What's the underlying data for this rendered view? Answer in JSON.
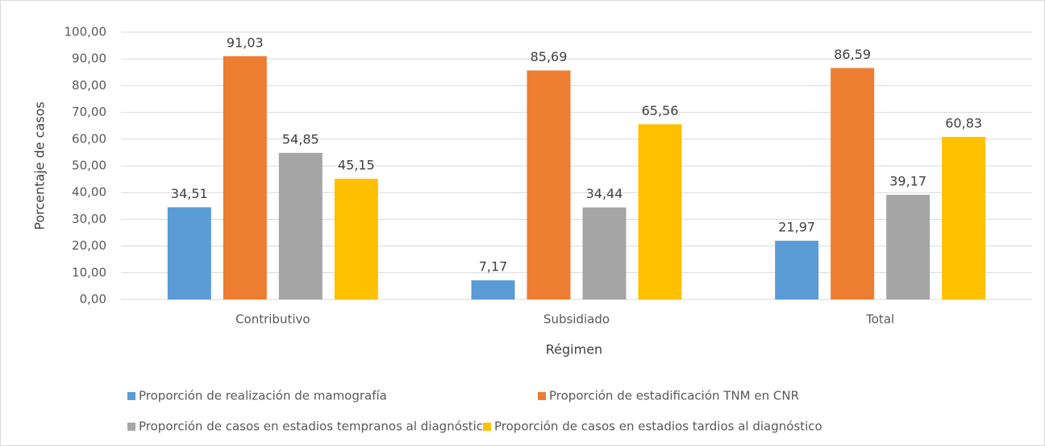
{
  "chart_data": {
    "type": "bar",
    "categories": [
      "Contributivo",
      "Subsidiado",
      "Total"
    ],
    "x_label": "Régimen",
    "y_label": "Porcentaje de casos",
    "ylim": [
      0,
      100
    ],
    "yticks": [
      {
        "value": 0,
        "label": "0,00"
      },
      {
        "value": 10,
        "label": "10,00"
      },
      {
        "value": 20,
        "label": "20,00"
      },
      {
        "value": 30,
        "label": "30,00"
      },
      {
        "value": 40,
        "label": "40,00"
      },
      {
        "value": 50,
        "label": "50,00"
      },
      {
        "value": 60,
        "label": "60,00"
      },
      {
        "value": 70,
        "label": "70,00"
      },
      {
        "value": 80,
        "label": "80,00"
      },
      {
        "value": 90,
        "label": "90,00"
      },
      {
        "value": 100,
        "label": "100,00"
      }
    ],
    "grid": true,
    "legend": "bottom",
    "series": [
      {
        "name": "Proporción de realización de mamografía",
        "color": "#5b9bd5",
        "values": [
          34.51,
          7.17,
          21.97
        ],
        "value_labels": [
          "34,51",
          "7,17",
          "21,97"
        ]
      },
      {
        "name": "Proporción de estadificación TNM en CNR",
        "color": "#ed7d31",
        "values": [
          91.03,
          85.69,
          86.59
        ],
        "value_labels": [
          "91,03",
          "85,69",
          "86,59"
        ]
      },
      {
        "name": "Proporción de casos en estadios tempranos al diagnóstico",
        "color": "#a5a5a5",
        "values": [
          54.85,
          34.44,
          39.17
        ],
        "value_labels": [
          "54,85",
          "34,44",
          "39,17"
        ]
      },
      {
        "name": "Proporción de casos en estadios tardios al diagnóstico",
        "color": "#ffc000",
        "values": [
          45.15,
          65.56,
          60.83
        ],
        "value_labels": [
          "45,15",
          "65,56",
          "60,83"
        ]
      }
    ]
  }
}
